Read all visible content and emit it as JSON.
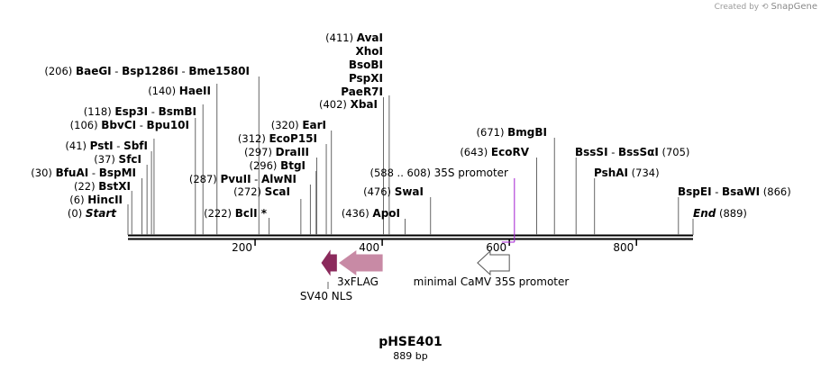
{
  "watermark": {
    "created_by": "Created by",
    "brand": "SnapGene"
  },
  "plasmid": {
    "name": "pHSE401",
    "length_label": "889 bp",
    "length_bp": 889
  },
  "axis": {
    "ticks": [
      200,
      400,
      600,
      800
    ]
  },
  "enzymes": [
    {
      "id": "start",
      "site": 0,
      "label_pos": "(0)",
      "names": [
        "Start"
      ],
      "italic": true
    },
    {
      "id": "hincii",
      "site": 6,
      "label_pos": "(6)",
      "names": [
        "HincII"
      ]
    },
    {
      "id": "bstxi",
      "site": 22,
      "label_pos": "(22)",
      "names": [
        "BstXI"
      ]
    },
    {
      "id": "bfuai",
      "site": 30,
      "label_pos": "(30)",
      "names": [
        "BfuAI",
        "BspMI"
      ]
    },
    {
      "id": "sfci",
      "site": 37,
      "label_pos": "(37)",
      "names": [
        "SfcI"
      ]
    },
    {
      "id": "psti",
      "site": 41,
      "label_pos": "(41)",
      "names": [
        "PstI",
        "SbfI"
      ]
    },
    {
      "id": "bbvci",
      "site": 106,
      "label_pos": "(106)",
      "names": [
        "BbvCI",
        "Bpu10I"
      ]
    },
    {
      "id": "esp3i",
      "site": 118,
      "label_pos": "(118)",
      "names": [
        "Esp3I",
        "BsmBI"
      ]
    },
    {
      "id": "haeii",
      "site": 140,
      "label_pos": "(140)",
      "names": [
        "HaeII"
      ]
    },
    {
      "id": "baegi",
      "site": 206,
      "label_pos": "(206)",
      "names": [
        "BaeGI",
        "Bsp1286I",
        "Bme1580I"
      ]
    },
    {
      "id": "bcli",
      "site": 222,
      "label_pos": "(222)",
      "names": [
        "BclI *"
      ]
    },
    {
      "id": "pvuii",
      "site": 287,
      "label_pos": "(287)",
      "names": [
        "PvuII",
        "AlwNI"
      ]
    },
    {
      "id": "scai",
      "site": 272,
      "label_pos": "(272)",
      "names": [
        "ScaI"
      ]
    },
    {
      "id": "btgi",
      "site": 296,
      "label_pos": "(296)",
      "names": [
        "BtgI"
      ]
    },
    {
      "id": "draiii",
      "site": 297,
      "label_pos": "(297)",
      "names": [
        "DraIII"
      ]
    },
    {
      "id": "ecop15i",
      "site": 312,
      "label_pos": "(312)",
      "names": [
        "EcoP15I"
      ]
    },
    {
      "id": "eari",
      "site": 320,
      "label_pos": "(320)",
      "names": [
        "EarI"
      ]
    },
    {
      "id": "xbai",
      "site": 402,
      "label_pos": "(402)",
      "names": [
        "XbaI"
      ]
    },
    {
      "id": "aval",
      "site": 411,
      "label_pos": "(411)",
      "names": [
        "AvaI",
        "XhoI",
        "BsoBI",
        "PspXI",
        "PaeR7I"
      ]
    },
    {
      "id": "apoi",
      "site": 436,
      "label_pos": "(436)",
      "names": [
        "ApoI"
      ]
    },
    {
      "id": "swai",
      "site": 476,
      "label_pos": "(476)",
      "names": [
        "SwaI"
      ]
    },
    {
      "id": "ecorv",
      "site": 643,
      "label_pos": "(643)",
      "names": [
        "EcoRV"
      ]
    },
    {
      "id": "bmgbi",
      "site": 671,
      "label_pos": "(671)",
      "names": [
        "BmgBI"
      ]
    },
    {
      "id": "bsssi",
      "site": 705,
      "label_pos": "(705)",
      "names": [
        "BssSI",
        "BssSαI"
      ]
    },
    {
      "id": "pshai",
      "site": 734,
      "label_pos": "(734)",
      "names": [
        "PshAI"
      ]
    },
    {
      "id": "bspei",
      "site": 866,
      "label_pos": "(866)",
      "names": [
        "BspEI",
        "BsaWI"
      ]
    },
    {
      "id": "end",
      "site": 889,
      "label_pos": "(889)",
      "names": [
        "End"
      ],
      "italic": true
    }
  ],
  "promoter_label": {
    "range": "(588 .. 608)",
    "name": "35S promoter",
    "site": 608,
    "color": "#a31fd1"
  },
  "features": [
    {
      "id": "sv40",
      "label": "SV40 NLS",
      "color": "#8b2a5c",
      "start": 305,
      "end": 328,
      "direction": "left"
    },
    {
      "id": "flag",
      "label": "3xFLAG",
      "color": "#c88aa5",
      "start": 333,
      "end": 400,
      "direction": "left"
    },
    {
      "id": "camv",
      "label": "minimal CaMV 35S promoter",
      "color": "#ffffff",
      "start": 550,
      "end": 600,
      "direction": "left"
    }
  ]
}
